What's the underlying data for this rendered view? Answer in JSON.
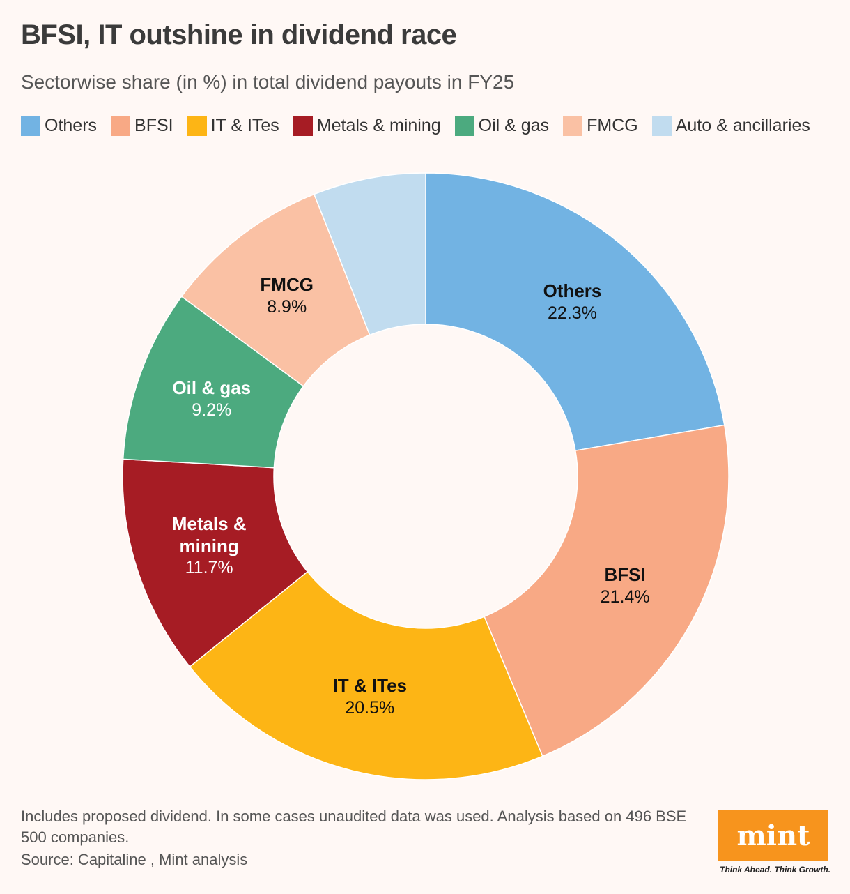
{
  "chart_data": {
    "type": "pie",
    "title": "BFSI, IT outshine in dividend race",
    "subtitle": "Sectorwise share (in %) in total dividend payouts in FY25",
    "legend": [
      "Others",
      "BFSI",
      "IT & ITes",
      "Metals & mining",
      "Oil & gas",
      "FMCG",
      "Auto & ancillaries"
    ],
    "slices": [
      {
        "name": "Others",
        "label": "Others",
        "value": 22.3,
        "display": "22.3%",
        "color": "#72b3e3",
        "text_color": "#111111"
      },
      {
        "name": "BFSI",
        "label": "BFSI",
        "value": 21.4,
        "display": "21.4%",
        "color": "#f8a985",
        "text_color": "#111111"
      },
      {
        "name": "IT & ITes",
        "label": "IT & ITes",
        "value": 20.5,
        "display": "20.5%",
        "color": "#fdb515",
        "text_color": "#111111"
      },
      {
        "name": "Metals & mining",
        "label": "Metals &\nmining",
        "value": 11.7,
        "display": "11.7%",
        "color": "#a61c24",
        "text_color": "#ffffff"
      },
      {
        "name": "Oil & gas",
        "label": "Oil & gas",
        "value": 9.2,
        "display": "9.2%",
        "color": "#4caa7f",
        "text_color": "#ffffff"
      },
      {
        "name": "FMCG",
        "label": "FMCG",
        "value": 8.9,
        "display": "8.9%",
        "color": "#fac1a4",
        "text_color": "#111111"
      },
      {
        "name": "Auto & ancillaries",
        "label": "",
        "value": 6.0,
        "display": "",
        "color": "#c1dcef",
        "text_color": "#111111"
      }
    ]
  },
  "footnote": "Includes proposed dividend. In some cases unaudited data was used. Analysis based on 496 BSE 500 companies.",
  "source": "Source: Capitaline , Mint analysis",
  "brand": {
    "logo": "mint",
    "tagline": "Think Ahead. Think Growth."
  }
}
